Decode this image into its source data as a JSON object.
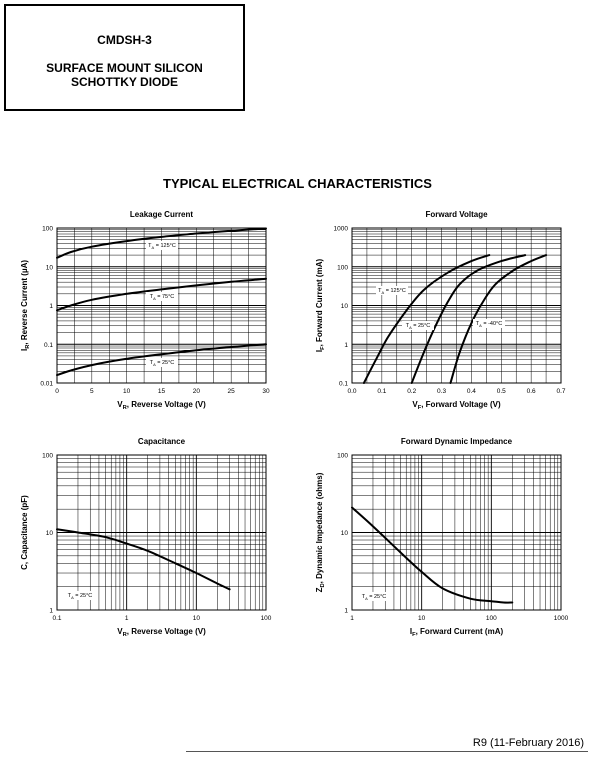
{
  "header": {
    "part_number": "CMDSH-3",
    "description_line1": "SURFACE MOUNT SILICON",
    "description_line2": "SCHOTTKY DIODE"
  },
  "section_title": "TYPICAL ELECTRICAL CHARACTERISTICS",
  "footer": {
    "revision": "R9 (11-February 2016)"
  },
  "chart_data": [
    {
      "type": "line",
      "title": "Leakage Current",
      "xlabel": "V_R, Reverse Voltage (V)",
      "ylabel": "I_R, Reverse Current (µA)",
      "xscale": "linear",
      "yscale": "log",
      "xlim": [
        0,
        30
      ],
      "ylim": [
        0.01,
        100
      ],
      "xticks": [
        0,
        5,
        10,
        15,
        20,
        25,
        30
      ],
      "xtick_labels": [
        "0",
        "5",
        "10",
        "15",
        "20",
        "25",
        "30"
      ],
      "yticks": [
        0.01,
        0.1,
        1,
        10,
        100
      ],
      "ytick_labels": [
        "0.01",
        "0.1",
        "1",
        "10",
        "100"
      ],
      "grid": true,
      "series": [
        {
          "name": "T_A = 125°C",
          "x": [
            0,
            2,
            5,
            10,
            15,
            20,
            25,
            30
          ],
          "y": [
            17,
            24,
            33,
            46,
            59,
            72,
            85,
            97
          ]
        },
        {
          "name": "T_A = 75°C",
          "x": [
            0,
            2,
            5,
            10,
            15,
            20,
            25,
            30
          ],
          "y": [
            0.75,
            1.0,
            1.4,
            2.0,
            2.6,
            3.3,
            4.1,
            4.9
          ]
        },
        {
          "name": "T_A = 25°C",
          "x": [
            0,
            2,
            5,
            10,
            15,
            20,
            25,
            30
          ],
          "y": [
            0.016,
            0.021,
            0.029,
            0.042,
            0.055,
            0.07,
            0.085,
            0.1
          ]
        }
      ]
    },
    {
      "type": "line",
      "title": "Forward Voltage",
      "xlabel": "V_F, Forward Voltage (V)",
      "ylabel": "I_F, Forward Current (mA)",
      "xscale": "linear",
      "yscale": "log",
      "xlim": [
        0,
        0.7
      ],
      "ylim": [
        0.1,
        1000
      ],
      "xticks": [
        0,
        0.1,
        0.2,
        0.3,
        0.4,
        0.5,
        0.6,
        0.7
      ],
      "xtick_labels": [
        "0.0",
        "0.1",
        "0.2",
        "0.3",
        "0.4",
        "0.5",
        "0.6",
        "0.7"
      ],
      "yticks": [
        0.1,
        1,
        10,
        100,
        1000
      ],
      "ytick_labels": [
        "0.1",
        "1",
        "10",
        "100",
        "1000"
      ],
      "grid": true,
      "series": [
        {
          "name": "T_A = 125°C",
          "x": [
            0.04,
            0.08,
            0.12,
            0.18,
            0.24,
            0.32,
            0.4,
            0.46
          ],
          "y": [
            0.1,
            0.4,
            1.5,
            7,
            25,
            70,
            140,
            200
          ]
        },
        {
          "name": "T_A = 25°C",
          "x": [
            0.2,
            0.24,
            0.28,
            0.32,
            0.36,
            0.42,
            0.5,
            0.58
          ],
          "y": [
            0.1,
            0.6,
            3,
            12,
            35,
            80,
            140,
            200
          ]
        },
        {
          "name": "T_A = -40°C",
          "x": [
            0.33,
            0.36,
            0.4,
            0.44,
            0.48,
            0.54,
            0.6,
            0.65
          ],
          "y": [
            0.1,
            0.6,
            3.5,
            13,
            35,
            80,
            140,
            200
          ]
        }
      ]
    },
    {
      "type": "line",
      "title": "Capacitance",
      "xlabel": "V_R, Reverse Voltage (V)",
      "ylabel": "C, Capacitance (pF)",
      "xscale": "log",
      "yscale": "log",
      "xlim": [
        0.1,
        100
      ],
      "ylim": [
        1,
        100
      ],
      "xticks": [
        0.1,
        1,
        10,
        100
      ],
      "xtick_labels": [
        "0.1",
        "1",
        "10",
        "100"
      ],
      "yticks": [
        1,
        10,
        100
      ],
      "ytick_labels": [
        "1",
        "10",
        "100"
      ],
      "grid": true,
      "annotation": "T_A = 25°C",
      "series": [
        {
          "name": "T_A = 25°C",
          "x": [
            0.1,
            0.2,
            0.5,
            1,
            2,
            5,
            10,
            20,
            30
          ],
          "y": [
            11,
            10,
            8.7,
            7.2,
            5.8,
            4.0,
            3.0,
            2.2,
            1.85
          ]
        }
      ]
    },
    {
      "type": "line",
      "title": "Forward Dynamic Impedance",
      "xlabel": "I_F, Forward Current (mA)",
      "ylabel": "Z_D, Dynamic Impedance (ohms)",
      "xscale": "log",
      "yscale": "log",
      "xlim": [
        1,
        1000
      ],
      "ylim": [
        1,
        100
      ],
      "xticks": [
        1,
        10,
        100,
        1000
      ],
      "xtick_labels": [
        "1",
        "10",
        "100",
        "1000"
      ],
      "yticks": [
        1,
        10,
        100
      ],
      "ytick_labels": [
        "1",
        "10",
        "100"
      ],
      "grid": true,
      "annotation": "T_A = 25°C",
      "series": [
        {
          "name": "T_A = 25°C",
          "x": [
            1,
            2,
            5,
            10,
            20,
            50,
            100,
            150,
            200
          ],
          "y": [
            21,
            12,
            5.5,
            3.1,
            1.9,
            1.4,
            1.3,
            1.25,
            1.25
          ]
        }
      ]
    }
  ]
}
